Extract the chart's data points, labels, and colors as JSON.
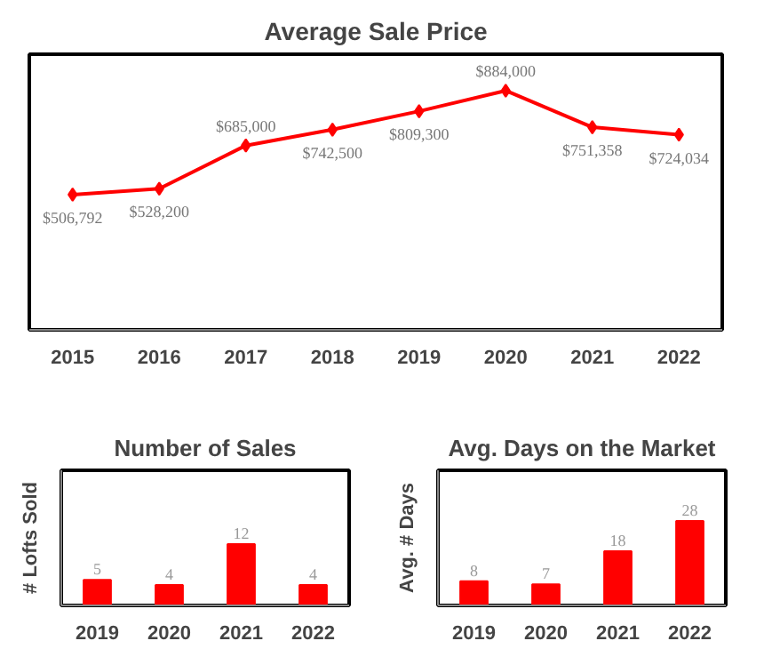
{
  "chart_data": [
    {
      "type": "line",
      "title": "Average Sale Price",
      "categories": [
        "2015",
        "2016",
        "2017",
        "2018",
        "2019",
        "2020",
        "2021",
        "2022"
      ],
      "values": [
        506792,
        528200,
        685000,
        742500,
        809300,
        884000,
        751358,
        724034
      ],
      "value_labels": [
        "$506,792",
        "$528,200",
        "$685,000",
        "$742,500",
        "$809,300",
        "$884,000",
        "$751,358",
        "$724,034"
      ],
      "color": "#ff0000",
      "marker": "diamond"
    },
    {
      "type": "bar",
      "title": "Number of Sales",
      "ylabel": "# Lofts Sold",
      "categories": [
        "2019",
        "2020",
        "2021",
        "2022"
      ],
      "values": [
        5,
        4,
        12,
        4
      ],
      "color": "#ff0000",
      "data_labels": true
    },
    {
      "type": "bar",
      "title": "Avg. Days on the Market",
      "ylabel": "Avg. # Days",
      "categories": [
        "2019",
        "2020",
        "2021",
        "2022"
      ],
      "values": [
        8,
        7,
        18,
        28
      ],
      "color": "#ff0000",
      "data_labels": true
    }
  ]
}
